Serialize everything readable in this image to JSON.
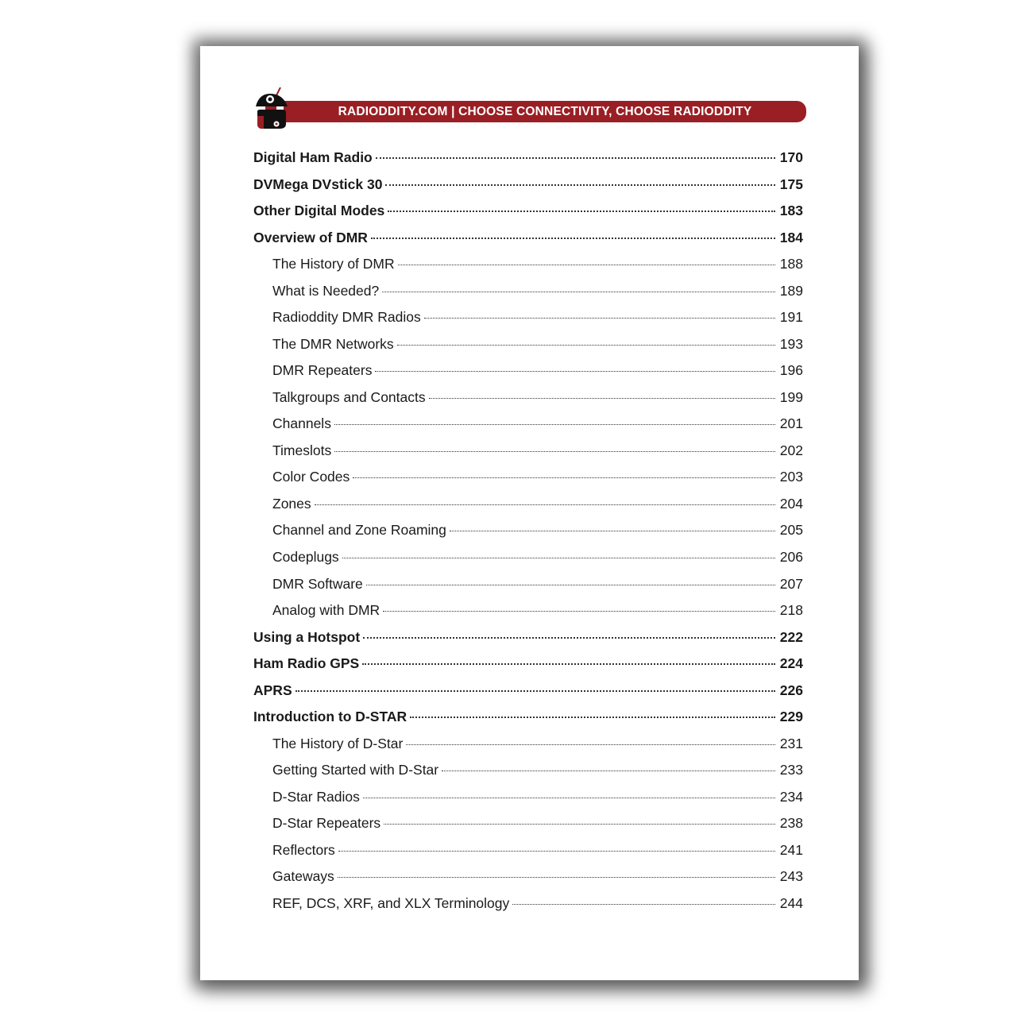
{
  "header": {
    "banner": "RADIODDITY.COM | CHOOSE CONNECTIVITY, CHOOSE RADIODDITY",
    "logo": "radioddity-robot-logo",
    "brand_color": "#9a1f24"
  },
  "toc": [
    {
      "title": "Digital Ham Radio",
      "page": "170",
      "level": 1
    },
    {
      "title": "DVMega DVstick 30",
      "page": "175",
      "level": 1
    },
    {
      "title": "Other Digital Modes",
      "page": "183",
      "level": 1
    },
    {
      "title": "Overview of DMR",
      "page": "184",
      "level": 1
    },
    {
      "title": "The History of DMR",
      "page": "188",
      "level": 2
    },
    {
      "title": "What is Needed?",
      "page": "189",
      "level": 2
    },
    {
      "title": "Radioddity DMR Radios",
      "page": "191",
      "level": 2
    },
    {
      "title": "The DMR Networks",
      "page": "193",
      "level": 2
    },
    {
      "title": "DMR Repeaters",
      "page": "196",
      "level": 2
    },
    {
      "title": "Talkgroups and Contacts",
      "page": "199",
      "level": 2
    },
    {
      "title": "Channels",
      "page": "201",
      "level": 2
    },
    {
      "title": "Timeslots",
      "page": "202",
      "level": 2
    },
    {
      "title": "Color Codes",
      "page": "203",
      "level": 2
    },
    {
      "title": "Zones",
      "page": "204",
      "level": 2
    },
    {
      "title": "Channel and Zone Roaming",
      "page": "205",
      "level": 2
    },
    {
      "title": "Codeplugs",
      "page": "206",
      "level": 2
    },
    {
      "title": "DMR Software",
      "page": "207",
      "level": 2
    },
    {
      "title": "Analog with DMR",
      "page": "218",
      "level": 2
    },
    {
      "title": "Using a Hotspot",
      "page": "222",
      "level": 1
    },
    {
      "title": "Ham Radio GPS",
      "page": "224",
      "level": 1
    },
    {
      "title": "APRS",
      "page": "226",
      "level": 1
    },
    {
      "title": "Introduction to D-STAR",
      "page": "229",
      "level": 1
    },
    {
      "title": "The History of D-Star",
      "page": "231",
      "level": 2
    },
    {
      "title": "Getting Started with D-Star",
      "page": "233",
      "level": 2
    },
    {
      "title": "D-Star Radios",
      "page": "234",
      "level": 2
    },
    {
      "title": "D-Star Repeaters",
      "page": "238",
      "level": 2
    },
    {
      "title": "Reflectors",
      "page": "241",
      "level": 2
    },
    {
      "title": "Gateways",
      "page": "243",
      "level": 2
    },
    {
      "title": "REF, DCS, XRF, and XLX Terminology",
      "page": "244",
      "level": 2
    }
  ]
}
